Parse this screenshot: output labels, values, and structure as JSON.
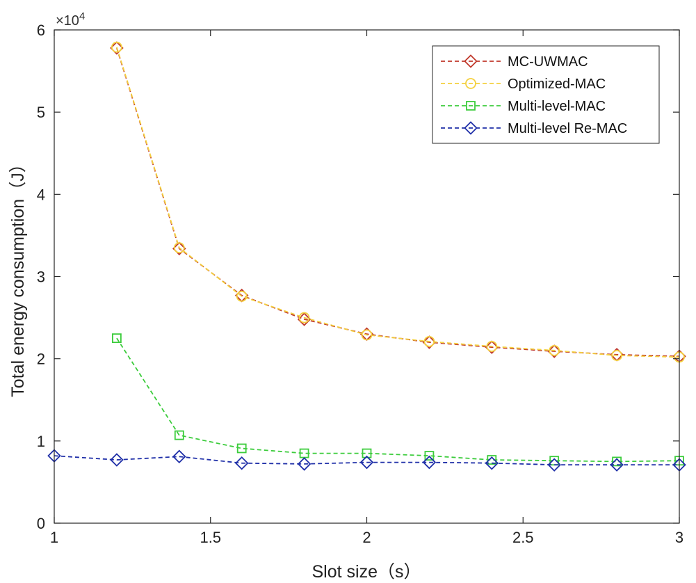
{
  "chart_data": {
    "type": "line",
    "title": "",
    "xlabel": "Slot size（s）",
    "ylabel": "Total energy consumption（J）",
    "y_exponent": "4",
    "y_multiplier_prefix": "×10",
    "xlim": [
      1,
      3
    ],
    "ylim": [
      0,
      6
    ],
    "x_ticks": [
      1,
      1.5,
      2,
      2.5,
      3
    ],
    "x_tick_labels": [
      "1",
      "1.5",
      "2",
      "2.5",
      "3"
    ],
    "y_ticks": [
      0,
      1,
      2,
      3,
      4,
      5,
      6
    ],
    "y_tick_labels": [
      "0",
      "1",
      "2",
      "3",
      "4",
      "5",
      "6"
    ],
    "grid": false,
    "legend_position": "top-right",
    "series": [
      {
        "name": "MC-UWMAC",
        "color": "#c0392b",
        "marker": "diamond",
        "x": [
          1.2,
          1.4,
          1.6,
          1.8,
          2.0,
          2.2,
          2.4,
          2.6,
          2.8,
          3.0
        ],
        "values": [
          5.78,
          3.34,
          2.77,
          2.48,
          2.3,
          2.2,
          2.14,
          2.09,
          2.05,
          2.03
        ]
      },
      {
        "name": "Optimized-MAC",
        "color": "#f4d03f",
        "marker": "circle",
        "x": [
          1.2,
          1.4,
          1.6,
          1.8,
          2.0,
          2.2,
          2.4,
          2.6,
          2.8,
          3.0
        ],
        "values": [
          5.79,
          3.35,
          2.76,
          2.5,
          2.29,
          2.21,
          2.15,
          2.1,
          2.04,
          2.02
        ]
      },
      {
        "name": "Multi-level-MAC",
        "color": "#3ccc3c",
        "marker": "square",
        "x": [
          1.2,
          1.4,
          1.6,
          1.8,
          2.0,
          2.2,
          2.4,
          2.6,
          2.8,
          3.0
        ],
        "values": [
          2.25,
          1.07,
          0.91,
          0.85,
          0.85,
          0.82,
          0.77,
          0.76,
          0.75,
          0.76
        ]
      },
      {
        "name": "Multi-level Re-MAC",
        "color": "#1f2fa8",
        "marker": "diamond",
        "x": [
          1.0,
          1.2,
          1.4,
          1.6,
          1.8,
          2.0,
          2.2,
          2.4,
          2.6,
          2.8,
          3.0
        ],
        "values": [
          0.82,
          0.77,
          0.81,
          0.73,
          0.72,
          0.74,
          0.74,
          0.73,
          0.71,
          0.71,
          0.71
        ]
      }
    ]
  }
}
